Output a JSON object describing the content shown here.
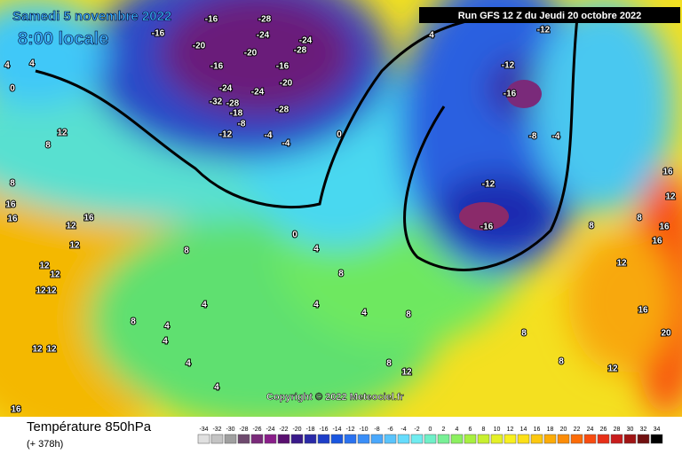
{
  "header": {
    "date": "Samedi 5 novembre 2022",
    "time": "8:00 locale",
    "run": "Run GFS 12 Z du Jeudi 20 octobre 2022"
  },
  "copyright": "Copyright © 2022 Meteociel.fr",
  "footer": {
    "title": "Température 850hPa",
    "lead": "(+ 378h)"
  },
  "contour_labels": [
    -16,
    -28,
    -20,
    -20,
    -16,
    -16,
    -16,
    -24,
    -28,
    -24,
    -24,
    -24,
    -20,
    -32,
    -28,
    -18,
    -8,
    -12,
    -4,
    -4,
    0,
    -28,
    4,
    0,
    4,
    4,
    -12,
    -12,
    -16,
    -8,
    -4,
    -12,
    -16,
    16,
    16,
    16,
    12,
    12,
    12,
    12,
    12,
    12,
    12,
    12,
    16,
    8,
    8,
    12,
    8,
    8,
    4,
    4,
    4,
    4,
    4,
    0,
    4,
    8,
    4,
    4,
    8,
    8,
    12,
    8,
    8,
    12,
    12,
    16,
    20,
    16,
    16,
    16,
    12,
    8,
    8
  ],
  "legend": {
    "values": [
      -34,
      -32,
      -30,
      -28,
      -26,
      -24,
      -22,
      -20,
      -18,
      -16,
      -14,
      -12,
      -10,
      -8,
      -6,
      -4,
      -2,
      0,
      2,
      4,
      6,
      8,
      10,
      12,
      14,
      16,
      18,
      20,
      22,
      24,
      26,
      28,
      30,
      32,
      34
    ],
    "colors": [
      "#e0e0e0",
      "#c4c4c4",
      "#a0a0a0",
      "#6e4a6e",
      "#7a2a7a",
      "#8a1e8a",
      "#5a1070",
      "#3a1a8a",
      "#2a2aa8",
      "#1e3ec8",
      "#1a56e0",
      "#2a72f0",
      "#3a8ef8",
      "#4aa8fc",
      "#5ac4fc",
      "#66dcfc",
      "#70ecf0",
      "#70f0c8",
      "#78f096",
      "#8cf060",
      "#a8f040",
      "#c8f030",
      "#e4f028",
      "#f8f020",
      "#fce018",
      "#fcc810",
      "#fcac08",
      "#fc8c08",
      "#fc6c08",
      "#f84c10",
      "#e83018",
      "#c81c1c",
      "#a01414",
      "#701010",
      "#000000"
    ]
  }
}
